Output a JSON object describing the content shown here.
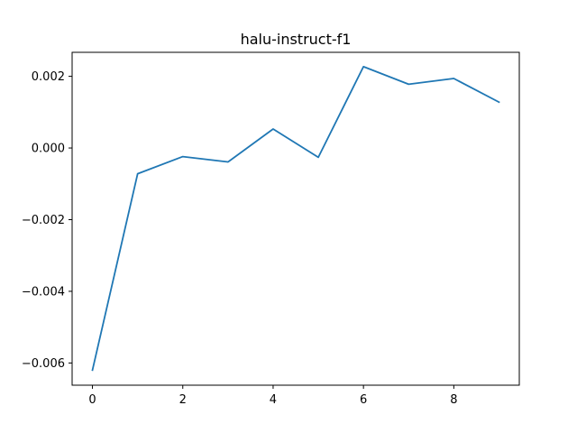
{
  "chart_data": {
    "type": "line",
    "title": "halu-instruct-f1",
    "xlabel": "",
    "ylabel": "",
    "xlim": [
      -0.45,
      9.45
    ],
    "ylim": [
      -0.00662,
      0.00267
    ],
    "xticks": [
      0,
      2,
      4,
      6,
      8
    ],
    "xtick_labels": [
      "0",
      "2",
      "4",
      "6",
      "8"
    ],
    "yticks": [
      -0.006,
      -0.004,
      -0.002,
      0.0,
      0.002
    ],
    "ytick_labels": [
      "−0.006",
      "−0.004",
      "−0.002",
      "0.000",
      "0.002"
    ],
    "grid": false,
    "series": [
      {
        "x": [
          0,
          1,
          2,
          3,
          4,
          5,
          6,
          7,
          8,
          9
        ],
        "values": [
          -0.0062,
          -0.00072,
          -0.00024,
          -0.00039,
          0.00053,
          -0.00026,
          0.00227,
          0.00178,
          0.00194,
          0.00128
        ],
        "color": "#1f77b4"
      }
    ]
  }
}
